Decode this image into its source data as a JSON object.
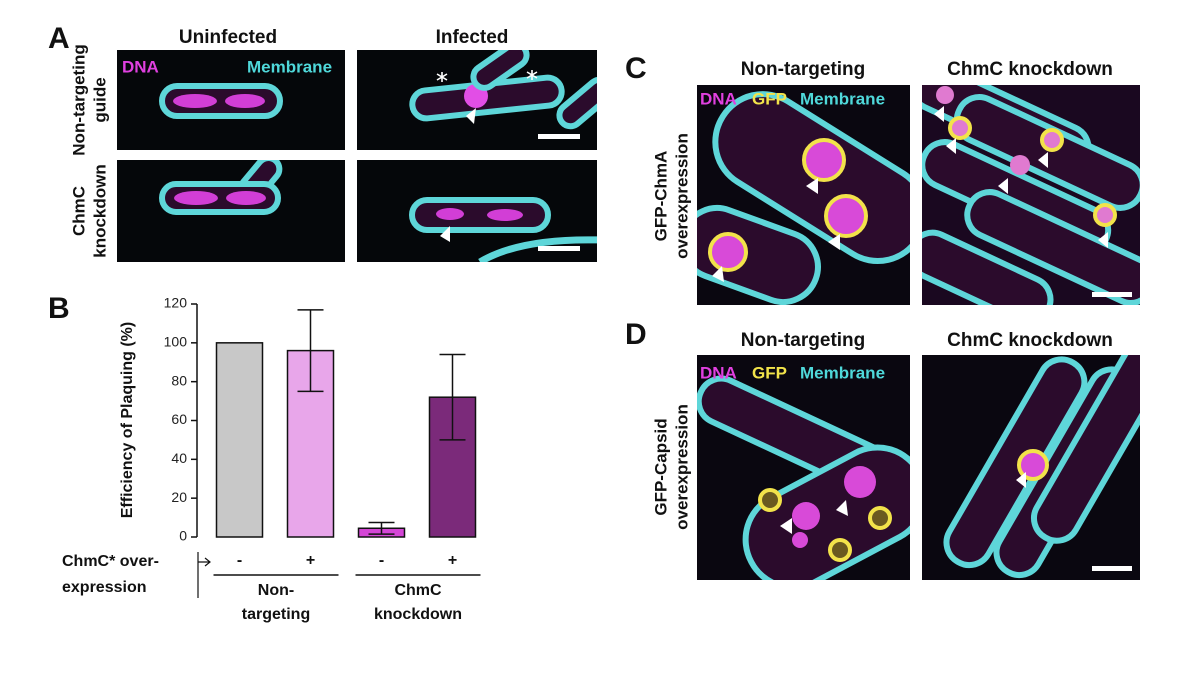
{
  "panel_A": {
    "letter": "A",
    "columns": [
      "Uninfected",
      "Infected"
    ],
    "rows": [
      [
        "Non-targeting",
        "guide"
      ],
      [
        "ChmC",
        "knockdown"
      ]
    ],
    "channels": [
      {
        "name": "DNA",
        "color": "#e040e0"
      },
      {
        "name": "Membrane",
        "color": "#4fd8da"
      }
    ]
  },
  "chart_data": {
    "type": "bar",
    "letter": "B",
    "ylabel": "Efficiency of Plaquing (%)",
    "categories": [
      "-",
      "+",
      "-",
      "+"
    ],
    "values": [
      100,
      96,
      4.5,
      72
    ],
    "errors": [
      null,
      21,
      3,
      22
    ],
    "colors": [
      "#c8c8c8",
      "#e8a6ea",
      "#d445d6",
      "#7b2a7a"
    ],
    "ylim": [
      0,
      120
    ],
    "yticks": [
      0,
      20,
      40,
      60,
      80,
      100,
      120
    ],
    "row_label": [
      "ChmC* over-",
      "expression"
    ],
    "groups": [
      [
        "Non-",
        "targeting"
      ],
      [
        "ChmC",
        "knockdown"
      ]
    ]
  },
  "panel_C": {
    "letter": "C",
    "columns": [
      "Non-targeting",
      "ChmC knockdown"
    ],
    "row_label": [
      "GFP-ChmA",
      "overexpression"
    ],
    "channels": [
      {
        "name": "DNA",
        "color": "#e040e0"
      },
      {
        "name": "GFP",
        "color": "#f2e34a"
      },
      {
        "name": "Membrane",
        "color": "#4fd8da"
      }
    ]
  },
  "panel_D": {
    "letter": "D",
    "columns": [
      "Non-targeting",
      "ChmC knockdown"
    ],
    "row_label": [
      "GFP-Capsid",
      "overexpression"
    ],
    "channels": [
      {
        "name": "DNA",
        "color": "#e040e0"
      },
      {
        "name": "GFP",
        "color": "#f2e34a"
      },
      {
        "name": "Membrane",
        "color": "#4fd8da"
      }
    ]
  }
}
